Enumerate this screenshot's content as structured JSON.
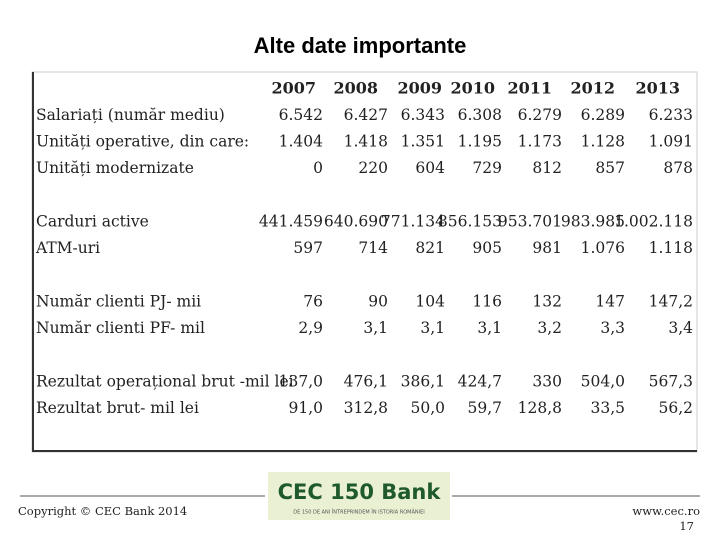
{
  "header": {
    "title": "Alte date importante"
  },
  "table": {
    "columns": [
      "2007",
      "2008",
      "2009",
      "2010",
      "2011",
      "2012",
      "2013"
    ],
    "groups": [
      [
        {
          "label": "Salariați (număr mediu)",
          "values": [
            "6.542",
            "6.427",
            "6.343",
            "6.308",
            "6.279",
            "6.289",
            "6.233"
          ]
        },
        {
          "label": "Unități operative, din care:",
          "values": [
            "1.404",
            "1.418",
            "1.351",
            "1.195",
            "1.173",
            "1.128",
            "1.091"
          ]
        },
        {
          "label": "Unități modernizate",
          "values": [
            "0",
            "220",
            "604",
            "729",
            "812",
            "857",
            "878"
          ]
        }
      ],
      [
        {
          "label": "Carduri active",
          "values": [
            "441.459",
            "640.690",
            "771.134",
            "856.153",
            "953.701",
            "983.985",
            "1.002.118"
          ]
        },
        {
          "label": "ATM-uri",
          "values": [
            "597",
            "714",
            "821",
            "905",
            "981",
            "1.076",
            "1.118"
          ]
        }
      ],
      [
        {
          "label": "Număr clienti PJ- mii",
          "values": [
            "76",
            "90",
            "104",
            "116",
            "132",
            "147",
            "147,2"
          ]
        },
        {
          "label": "Număr clienti PF- mil",
          "values": [
            "2,9",
            "3,1",
            "3,1",
            "3,1",
            "3,2",
            "3,3",
            "3,4"
          ]
        }
      ],
      [
        {
          "label": "Rezultat operațional brut -mil lei",
          "values": [
            "137,0",
            "476,1",
            "386,1",
            "424,7",
            "330",
            "504,0",
            "567,3"
          ]
        },
        {
          "label": "Rezultat brut- mil lei",
          "values": [
            "91,0",
            "312,8",
            "50,0",
            "59,7",
            "128,8",
            "33,5",
            "56,2"
          ]
        }
      ]
    ]
  },
  "footer": {
    "copyright": "Copyright © CEC Bank 2014",
    "logo": "CEC 150 Bank",
    "logo_tagline": "DE 150 DE ANI ÎNTREPRINDEM ÎN ISTORIA ROMÂNIEI",
    "website": "www.cec.ro",
    "page": "17"
  }
}
